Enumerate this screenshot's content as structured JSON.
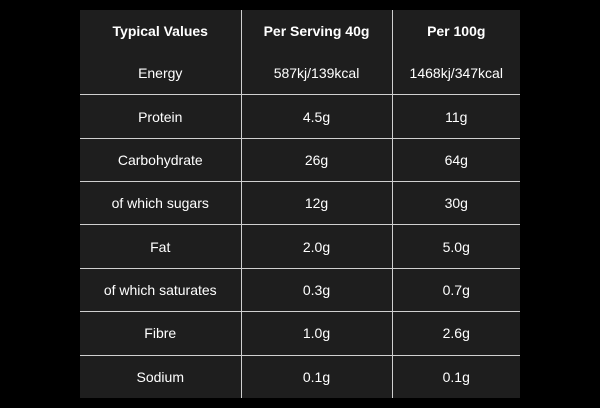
{
  "table": {
    "headers": [
      "Typical Values",
      "Per Serving 40g",
      "Per 100g"
    ],
    "rows": [
      {
        "name": "Energy",
        "per_serving": "587kj/139kcal",
        "per_100g": "1468kj/347kcal"
      },
      {
        "name": "Protein",
        "per_serving": "4.5g",
        "per_100g": "11g"
      },
      {
        "name": "Carbohydrate",
        "per_serving": "26g",
        "per_100g": "64g"
      },
      {
        "name": "of which sugars",
        "per_serving": "12g",
        "per_100g": "30g"
      },
      {
        "name": "Fat",
        "per_serving": "2.0g",
        "per_100g": "5.0g"
      },
      {
        "name": "of which saturates",
        "per_serving": "0.3g",
        "per_100g": "0.7g"
      },
      {
        "name": "Fibre",
        "per_serving": "1.0g",
        "per_100g": "2.6g"
      },
      {
        "name": "Sodium",
        "per_serving": "0.1g",
        "per_100g": "0.1g"
      }
    ]
  },
  "colors": {
    "background": "#000000",
    "table_background": "#1e1e1e",
    "grid_lines": "#d0d0d0",
    "text": "#ffffff"
  }
}
